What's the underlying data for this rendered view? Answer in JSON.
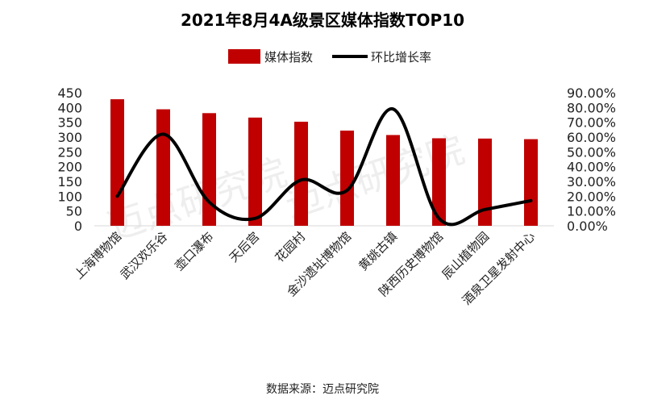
{
  "chart_data": {
    "type": "bar",
    "title": "2021年8月4A级景区媒体指数TOP10",
    "categories": [
      "上海博物馆",
      "武汉欢乐谷",
      "壶口瀑布",
      "天后宫",
      "花园村",
      "金沙遗址博物馆",
      "黄姚古镇",
      "陕西历史博物馆",
      "辰山植物园",
      "酒泉卫星发射中心"
    ],
    "series": [
      {
        "name": "媒体指数",
        "type": "bar",
        "axis": "left",
        "color": "#c00000",
        "values": [
          428,
          394,
          381,
          366,
          352,
          322,
          307,
          296,
          295,
          293
        ]
      },
      {
        "name": "环比增长率",
        "type": "line",
        "axis": "right",
        "color": "#000000",
        "values": [
          20.0,
          62.0,
          16.0,
          5.0,
          31.0,
          24.0,
          79.0,
          5.0,
          11.0,
          17.0
        ]
      }
    ],
    "y_left": {
      "min": 0,
      "max": 450,
      "step": 50,
      "ticks": [
        "0",
        "50",
        "100",
        "150",
        "200",
        "250",
        "300",
        "350",
        "400",
        "450"
      ]
    },
    "y_right": {
      "min": 0,
      "max": 90,
      "step": 10,
      "ticks": [
        "0.00%",
        "10.00%",
        "20.00%",
        "30.00%",
        "40.00%",
        "50.00%",
        "60.00%",
        "70.00%",
        "80.00%",
        "90.00%"
      ]
    },
    "legend_position": "top-center",
    "grid": false
  },
  "source_text": "数据来源：迈点研究院",
  "watermark": "迈点研究院"
}
